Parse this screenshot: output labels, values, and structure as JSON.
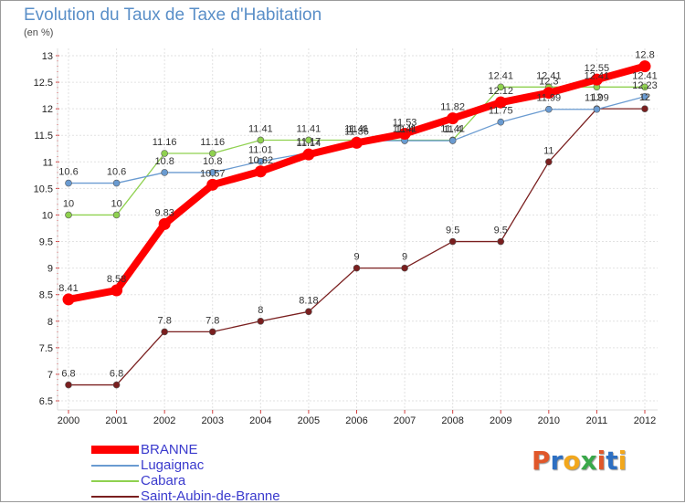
{
  "title": "Evolution du Taux de Taxe d'Habitation",
  "subtitle": "(en %)",
  "logo": {
    "text": "Proxiti",
    "colors": [
      "#e0572a",
      "#2d6fc2",
      "#f2a71c",
      "#3aa84a",
      "#e0572a",
      "#2d6fc2",
      "#f2a71c"
    ]
  },
  "chart_data": {
    "type": "line",
    "x": [
      2000,
      2001,
      2002,
      2003,
      2004,
      2005,
      2006,
      2007,
      2008,
      2009,
      2010,
      2011,
      2012
    ],
    "ylim": [
      6.5,
      13
    ],
    "yticks": [
      6.5,
      7,
      7.5,
      8,
      8.5,
      9,
      9.5,
      10,
      10.5,
      11,
      11.5,
      12,
      12.5,
      13
    ],
    "ytick_labels": [
      "6.5",
      "7",
      "7.5",
      "8",
      "8.5",
      "9",
      "9.5",
      "10",
      "10.5",
      "11",
      "11.5",
      "12",
      "12.5",
      "13"
    ],
    "grid": true,
    "legend_position": "bottom-left",
    "series": [
      {
        "name": "BRANNE",
        "color": "#ff0000",
        "values": [
          8.41,
          8.58,
          9.83,
          10.57,
          10.82,
          11.14,
          11.36,
          11.53,
          11.82,
          12.12,
          12.3,
          12.55,
          12.8
        ],
        "labels": [
          "8.41",
          "8.58",
          "9.83",
          "10.57",
          "10.82",
          "11.14",
          "11.36",
          "11.53",
          "11.82",
          "12.12",
          "12.3",
          "12.55",
          "12.8"
        ]
      },
      {
        "name": "Lugaignac",
        "color": "#6a9bd1",
        "values": [
          10.6,
          10.6,
          10.8,
          10.8,
          11.01,
          11.17,
          11.4,
          11.4,
          11.4,
          11.75,
          11.99,
          11.99,
          12.23
        ],
        "labels": [
          "10.6",
          "10.6",
          "10.8",
          "10.8",
          "11.01",
          "11.17",
          "11.4",
          "11.4",
          "11.4",
          "11.75",
          "11.99",
          "11.99",
          "12.23"
        ]
      },
      {
        "name": "Cabara",
        "color": "#8fd14f",
        "values": [
          10,
          10,
          11.16,
          11.16,
          11.41,
          11.41,
          11.41,
          11.41,
          11.41,
          12.41,
          12.41,
          12.41,
          12.41
        ],
        "labels": [
          "10",
          "10",
          "11.16",
          "11.16",
          "11.41",
          "11.41",
          "11.41",
          "11.41",
          "11.41",
          "12.41",
          "12.41",
          "12.41",
          "12.41"
        ]
      },
      {
        "name": "Saint-Aubin-de-Branne",
        "color": "#7a1f1f",
        "values": [
          6.8,
          6.8,
          7.8,
          7.8,
          8,
          8.18,
          9,
          9,
          9.5,
          9.5,
          11,
          12,
          12
        ],
        "labels": [
          "6.8",
          "6.8",
          "7.8",
          "7.8",
          "8",
          "8.18",
          "9",
          "9",
          "9.5",
          "9.5",
          "11",
          "12",
          "12"
        ]
      }
    ]
  }
}
